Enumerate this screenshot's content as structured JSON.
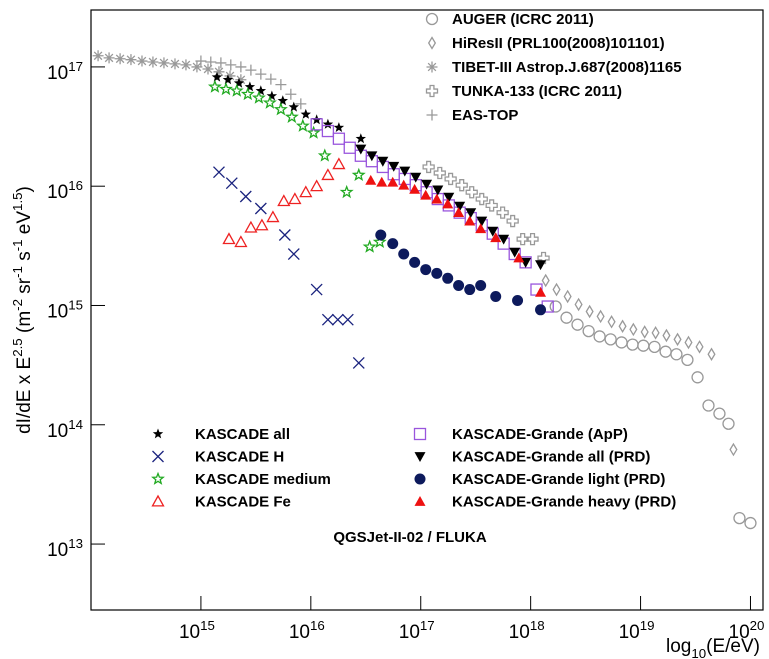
{
  "chart_data": {
    "type": "scatter",
    "ylabel": "dI/dE x E^{2.5} (m^{-2} sr^{-1} s^{-1} eV^{1.5})",
    "xlabel": "log_{10}(E/eV)",
    "annotation": "QGSJet-II-02 / FLUKA",
    "xscale": "log",
    "yscale": "log",
    "grid": false,
    "legend": "upper right",
    "xlim": [
      100000000000000.0,
      1.3e+20
    ],
    "ylim": [
      2800000000000.0,
      3e+17
    ],
    "xticks": [
      {
        "value": 1000000000000000.0,
        "label": "10^{15}"
      },
      {
        "value": 1e+16,
        "label": "10^{16}"
      },
      {
        "value": 1e+17,
        "label": "10^{17}"
      },
      {
        "value": 1e+18,
        "label": "10^{18}"
      },
      {
        "value": 1e+19,
        "label": "10^{19}"
      },
      {
        "value": 1e+20,
        "label": "10^{20}"
      }
    ],
    "yticks": [
      {
        "value": 10000000000000.0,
        "label": "10^{13}"
      },
      {
        "value": 100000000000000.0,
        "label": "10^{14}"
      },
      {
        "value": 1000000000000000.0,
        "label": "10^{15}"
      },
      {
        "value": 1e+16,
        "label": "10^{16}"
      },
      {
        "value": 1e+17,
        "label": "10^{17}"
      }
    ],
    "series": [
      {
        "name": "AUGER (ICRC 2011)",
        "color": "#999999",
        "marker": "circle-open",
        "x": [
          1.69e+18,
          2.12e+18,
          2.67e+18,
          3.37e+18,
          4.24e+18,
          5.34e+18,
          6.72e+18,
          8.46e+18,
          1.06e+19,
          1.34e+19,
          1.69e+19,
          2.12e+19,
          2.67e+19,
          3.3e+19,
          4.15e+19,
          5.22e+19,
          6.31e+19,
          7.94e+19,
          1e+20
        ],
        "values": [
          980000000000000.0,
          790000000000000.0,
          690000000000000.0,
          610000000000000.0,
          550000000000000.0,
          520000000000000.0,
          490000000000000.0,
          470000000000000.0,
          460000000000000.0,
          450000000000000.0,
          410000000000000.0,
          390000000000000.0,
          350000000000000.0,
          250000000000000.0,
          145000000000000.0,
          124000000000000.0,
          102000000000000.0,
          16500000000000.0,
          15000000000000.0
        ]
      },
      {
        "name": "HiResII (PRL100(2008)101101)",
        "color": "#999999",
        "marker": "diamond-open",
        "x": [
          1.37e+18,
          1.72e+18,
          2.17e+18,
          2.73e+18,
          3.44e+18,
          4.33e+18,
          5.45e+18,
          6.86e+18,
          8.6e+18,
          1.09e+19,
          1.37e+19,
          1.72e+19,
          2.17e+19,
          2.73e+19,
          3.44e+19,
          4.42e+19,
          7e+19
        ],
        "values": [
          1620000000000000.0,
          1360000000000000.0,
          1190000000000000.0,
          1020000000000000.0,
          890000000000000.0,
          810000000000000.0,
          730000000000000.0,
          670000000000000.0,
          630000000000000.0,
          600000000000000.0,
          590000000000000.0,
          560000000000000.0,
          520000000000000.0,
          490000000000000.0,
          450000000000000.0,
          390000000000000.0,
          62000000000000.0
        ]
      },
      {
        "name": "TIBET-III Astrop.J.687(2008)1165",
        "color": "#999999",
        "marker": "asterisk",
        "x": [
          116000000000000.0,
          146000000000000.0,
          184000000000000.0,
          231000000000000.0,
          291000000000000.0,
          366000000000000.0,
          461000000000000.0,
          581000000000000.0,
          731000000000000.0,
          920000000000000.0,
          1160000000000000.0,
          1460000000000000.0,
          1840000000000000.0,
          2310000000000000.0
        ],
        "values": [
          1.24e+17,
          1.19e+17,
          1.17e+17,
          1.15e+17,
          1.12e+17,
          1.1e+17,
          1.08e+17,
          1.06e+17,
          1.04e+17,
          1e+17,
          9.6e+16,
          9.1e+16,
          8.4e+16,
          7.8e+16
        ]
      },
      {
        "name": "TUNKA-133 (ICRC 2011)",
        "color": "#999999",
        "marker": "cross-open",
        "x": [
          1.18e+17,
          1.49e+17,
          1.87e+17,
          2.36e+17,
          2.91e+17,
          3.59e+17,
          4.42e+17,
          5.56e+17,
          6.86e+17,
          8.46e+17,
          1.04e+18,
          1.31e+18
        ],
        "values": [
          1.45e+16,
          1.29e+16,
          1.15e+16,
          1.02e+16,
          8900000000000000.0,
          7800000000000000.0,
          6900000000000000.0,
          6000000000000000.0,
          5100000000000000.0,
          3600000000000000.0,
          3600000000000000.0,
          2500000000000000.0
        ]
      },
      {
        "name": "EAS-TOP",
        "color": "#999999",
        "marker": "plus",
        "x": [
          1000000000000000.0,
          1230000000000000.0,
          1520000000000000.0,
          1870000000000000.0,
          2310000000000000.0,
          2850000000000000.0,
          3510000000000000.0,
          4330000000000000.0,
          5340000000000000.0,
          6580000000000000.0,
          8110000000000000.0
        ],
        "values": [
          1.12e+17,
          1.1e+17,
          1.08e+17,
          1.04e+17,
          1e+17,
          9.4e+16,
          8.7e+16,
          7.9e+16,
          7.1e+16,
          5.9e+16,
          4.9e+16
        ]
      },
      {
        "name": "KASCADE all",
        "color": "#000000",
        "marker": "star",
        "x": [
          1400000000000000.0,
          1760000000000000.0,
          2220000000000000.0,
          2790000000000000.0,
          3510000000000000.0,
          4420000000000000.0,
          5560000000000000.0,
          7000000000000000.0,
          9000000000000000.0,
          1.13e+16,
          1.43e+16,
          1.8e+16,
          2.85e+16
        ],
        "values": [
          8.2e+16,
          7.8e+16,
          7.3e+16,
          6.8e+16,
          6.3e+16,
          5.7e+16,
          5.2e+16,
          4.6e+16,
          4e+16,
          3.6e+16,
          3.3e+16,
          3.1e+16,
          2.5e+16
        ]
      },
      {
        "name": "KASCADE H",
        "color": "#1a237e",
        "marker": "x",
        "x": [
          1460000000000000.0,
          1910000000000000.0,
          2560000000000000.0,
          3510000000000000.0,
          5800000000000000.0,
          7000000000000000.0,
          1.13e+16,
          1.43e+16,
          1.76e+16,
          2.17e+16,
          2.73e+16
        ],
        "values": [
          1.31e+16,
          1.06e+16,
          8200000000000000.0,
          6500000000000000.0,
          3900000000000000.0,
          2700000000000000.0,
          1360000000000000.0,
          760000000000000.0,
          760000000000000.0,
          760000000000000.0,
          330000000000000.0
        ]
      },
      {
        "name": "KASCADE medium",
        "color": "#22aa22",
        "marker": "star-open",
        "x": [
          1340000000000000.0,
          1690000000000000.0,
          2120000000000000.0,
          2670000000000000.0,
          3370000000000000.0,
          4240000000000000.0,
          5340000000000000.0,
          6720000000000000.0,
          8460000000000000.0,
          1.06e+16,
          1.34e+16,
          2.12e+16,
          2.73e+16,
          3.43e+16,
          4.24e+16
        ],
        "values": [
          6.8e+16,
          6.5e+16,
          6.3e+16,
          5.9e+16,
          5.5e+16,
          5e+16,
          4.4e+16,
          3.8e+16,
          3.2e+16,
          2.8e+16,
          1.8e+16,
          8900000000000000.0,
          1.24e+16,
          3100000000000000.0,
          3400000000000000.0
        ]
      },
      {
        "name": "KASCADE Fe",
        "color": "#ee2222",
        "marker": "triangle-open",
        "x": [
          1800000000000000.0,
          2310000000000000.0,
          2850000000000000.0,
          3590000000000000.0,
          4520000000000000.0,
          5680000000000000.0,
          7160000000000000.0,
          9000000000000000.0,
          1.13e+16,
          1.43e+16,
          1.8e+16
        ],
        "values": [
          3600000000000000.0,
          3400000000000000.0,
          4500000000000000.0,
          4700000000000000.0,
          5500000000000000.0,
          7500000000000000.0,
          7800000000000000.0,
          8900000000000000.0,
          1e+16,
          1.24e+16,
          1.53e+16
        ]
      },
      {
        "name": "KASCADE-Grande (ApP)",
        "color": "#9955dd",
        "marker": "square-open",
        "x": [
          1.13e+16,
          1.43e+16,
          1.8e+16,
          2.26e+16,
          2.85e+16,
          3.59e+16,
          4.52e+16,
          5.68e+16,
          7.16e+16,
          9e+16,
          1.13e+17,
          1.43e+17,
          1.8e+17,
          2.26e+17,
          2.85e+17,
          3.59e+17,
          4.52e+17,
          5.68e+17,
          7.16e+17,
          9e+17,
          1.13e+18,
          1.43e+18
        ],
        "values": [
          3.3e+16,
          2.9e+16,
          2.5e+16,
          2.1e+16,
          1.8e+16,
          1.62e+16,
          1.45e+16,
          1.26e+16,
          1.15e+16,
          1.02e+16,
          8900000000000000.0,
          7800000000000000.0,
          6900000000000000.0,
          6000000000000000.0,
          5400000000000000.0,
          4700000000000000.0,
          4000000000000000.0,
          3300000000000000.0,
          2700000000000000.0,
          2300000000000000.0,
          1360000000000000.0,
          980000000000000.0
        ]
      },
      {
        "name": "KASCADE-Grande all (PRD)",
        "color": "#000000",
        "marker": "triangle-down",
        "x": [
          2.85e+16,
          3.59e+16,
          4.52e+16,
          5.68e+16,
          7.16e+16,
          9e+16,
          1.13e+17,
          1.43e+17,
          1.8e+17,
          2.26e+17,
          2.85e+17,
          3.59e+17,
          4.52e+17,
          5.68e+17,
          7.16e+17,
          9e+17,
          1.23e+18
        ],
        "values": [
          2.05e+16,
          1.8e+16,
          1.62e+16,
          1.47e+16,
          1.34e+16,
          1.19e+16,
          1.04e+16,
          9300000000000000.0,
          8100000000000000.0,
          6800000000000000.0,
          6000000000000000.0,
          5100000000000000.0,
          4200000000000000.0,
          3600000000000000.0,
          2800000000000000.0,
          2300000000000000.0,
          2200000000000000.0
        ]
      },
      {
        "name": "KASCADE-Grande light (PRD)",
        "color": "#0d1a5c",
        "marker": "circle",
        "x": [
          4.33e+16,
          5.56e+16,
          7e+16,
          8.8e+16,
          1.11e+17,
          1.4e+17,
          1.76e+17,
          2.21e+17,
          2.79e+17,
          3.51e+17,
          4.81e+17,
          7.6e+17,
          1.23e+18
        ],
        "values": [
          3900000000000000.0,
          3300000000000000.0,
          2700000000000000.0,
          2300000000000000.0,
          2000000000000000.0,
          1860000000000000.0,
          1690000000000000.0,
          1470000000000000.0,
          1360000000000000.0,
          1470000000000000.0,
          1190000000000000.0,
          1100000000000000.0,
          920000000000000.0
        ]
      },
      {
        "name": "KASCADE-Grande heavy (PRD)",
        "color": "#ee1111",
        "marker": "triangle",
        "x": [
          3.51e+16,
          4.42e+16,
          5.56e+16,
          7e+16,
          8.8e+16,
          1.11e+17,
          1.4e+17,
          1.76e+17,
          2.21e+17,
          2.79e+17,
          3.51e+17,
          4.81e+17,
          7.8e+17,
          1.23e+18
        ],
        "values": [
          1.12e+16,
          1.08e+16,
          1.08e+16,
          1.02e+16,
          9400000000000000.0,
          8400000000000000.0,
          7800000000000000.0,
          7100000000000000.0,
          6000000000000000.0,
          5100000000000000.0,
          4400000000000000.0,
          3700000000000000.0,
          2500000000000000.0,
          1290000000000000.0
        ]
      }
    ]
  }
}
